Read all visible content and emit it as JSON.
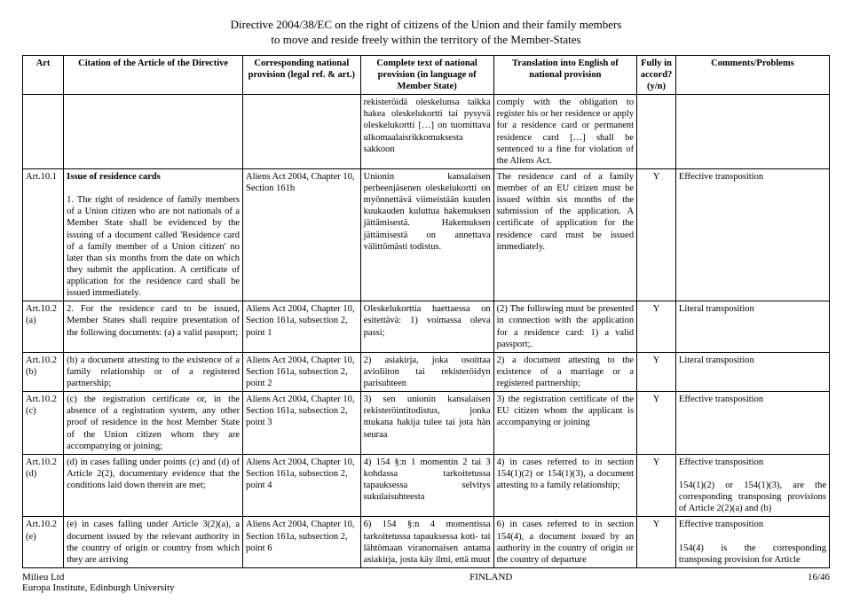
{
  "page": {
    "title_line1": "Directive 2004/38/EC on the right of citizens of the Union and their family members",
    "title_line2": "to move and reside freely within the territory of the Member-States",
    "footer_left1": "Milieu Ltd",
    "footer_left2": "Europa Institute, Edinburgh University",
    "footer_center": "FINLAND",
    "footer_right": "16/46"
  },
  "headers": {
    "art": "Art",
    "citation": "Citation of the Article of the Directive",
    "national": "Corresponding national provision (legal ref. & art.)",
    "complete": "Complete text of national provision (in language of Member State)",
    "translation": "Translation into English of national provision",
    "accord": "Fully in accord? (y/n)",
    "comments": "Comments/Problems"
  },
  "rows": [
    {
      "art": "",
      "citation": "",
      "national": "",
      "complete": "rekisteröidä oleskelunsa taikka hakea oleskelukortti tai pysyvä oleskelukortti […] on tuomittava ulkomaalaisrikkomuksesta sakkoon",
      "translation": "comply with the obligation to register his or her residence or apply for a residence card or permanent residence card […] shall be sentenced to a fine for violation of the Aliens Act.",
      "accord": "",
      "comments": ""
    },
    {
      "art": "Art.10.1",
      "citation_bold": "Issue of residence cards",
      "citation": "1. The right of residence of family members of a Union citizen who are not nationals of a Member State shall be evidenced by the issuing of a document called 'Residence card of a family member of a Union citizen' no later than six months from the date on which they submit the application. A certificate of application for the residence card shall be issued immediately.",
      "national": "Aliens Act 2004, Chapter 10, Section 161b",
      "complete": "Unionin kansalaisen perheenjäsenen oleskelukortti on myönnettävä viimeistään kuuden kuukauden kuluttua hakemuksen jättämisestä. Hakemuksen jättämisestä on annettava välittömästi todistus.",
      "translation": "The residence card of a family member of an EU citizen must be issued within six months of the submission of the application. A certificate of application for the residence card must be issued immediately.",
      "accord": "Y",
      "comments": "Effective transposition"
    },
    {
      "art": "Art.10.2 (a)",
      "citation": "2. For the residence card to be issued, Member States shall require presentation of the following documents: (a) a valid passport;",
      "national": "Aliens Act 2004, Chapter 10, Section 161a, subsection 2, point 1",
      "complete": "Oleskelukorttia haettaessa on esitettävä: 1) voimassa oleva passi;",
      "translation": "(2) The following must be presented in connection with the application for a residence card: 1) a valid passport;.",
      "accord": "Y",
      "comments": "Literal transposition"
    },
    {
      "art": "Art.10.2 (b)",
      "citation": "(b) a document attesting to the existence of a family relationship or of a registered partnership;",
      "national": "Aliens Act 2004, Chapter 10, Section 161a, subsection 2, point 2",
      "complete": "2) asiakirja, joka osoittaa avioliiton tai rekisteröidyn parisuhteen",
      "translation": "2) a document attesting to the existence of a marriage or a registered partnership;",
      "accord": "Y",
      "comments": "Literal transposition"
    },
    {
      "art": "Art.10.2 (c)",
      "citation": "(c) the registration certificate or, in the absence of a registration system, any other proof of residence in the host Member State of the Union citizen whom they are accompanying or joining;",
      "national": "Aliens Act 2004, Chapter 10, Section 161a, subsection 2, point 3",
      "complete": "3) sen unionin kansalaisen rekisteröintitodistus, jonka mukana hakija tulee tai jota hän seuraa",
      "translation": "3) the registration certificate of the EU citizen whom the applicant is accompanying or joining",
      "accord": "Y",
      "comments": "Effective transposition"
    },
    {
      "art": "Art.10.2 (d)",
      "citation": "(d) in cases falling under points (c) and (d) of Article 2(2), documentary evidence that the conditions laid down therein are met;",
      "national": "Aliens Act 2004, Chapter 10, Section 161a, subsection 2, point 4",
      "complete": "4) 154 §:n 1 momentin 2 tai 3 kohdassa tarkoitetussa tapauksessa selvitys sukulaisuhteesta",
      "translation": "4) in cases referred to in section 154(1)(2) or 154(1)(3), a document attesting to a family relationship;",
      "accord": "Y",
      "comments": "Effective transposition\n\n154(1)(2) or 154(1)(3), are the corresponding transposing provisions of Article 2(2)(a) and (b)"
    },
    {
      "art": "Art.10.2 (e)",
      "citation": "(e) in cases falling under Article 3(2)(a), a document issued by the relevant authority in the country of origin or country from which they are arriving",
      "national": "Aliens Act 2004, Chapter 10, Section 161a, subsection 2, point 6",
      "complete": "6) 154 §:n 4 momentissa tarkoitetussa tapauksessa koti- tai lähtömaan viranomaisen antama asiakirja, josta käy ilmi, että muut",
      "translation": "6) in cases referred to in section 154(4), a document issued by an authority in the country of origin or the country of departure",
      "accord": "Y",
      "comments": "Effective transposition\n\n154(4) is the corresponding transposing provision for Article"
    }
  ]
}
